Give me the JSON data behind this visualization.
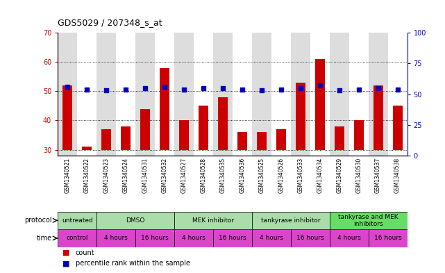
{
  "title": "GDS5029 / 207348_s_at",
  "samples": [
    "GSM1340521",
    "GSM1340522",
    "GSM1340523",
    "GSM1340524",
    "GSM1340531",
    "GSM1340532",
    "GSM1340527",
    "GSM1340528",
    "GSM1340535",
    "GSM1340536",
    "GSM1340525",
    "GSM1340526",
    "GSM1340533",
    "GSM1340534",
    "GSM1340529",
    "GSM1340530",
    "GSM1340537",
    "GSM1340538"
  ],
  "counts": [
    52,
    31,
    37,
    38,
    44,
    58,
    40,
    45,
    48,
    36,
    36,
    37,
    53,
    61,
    38,
    40,
    52,
    45
  ],
  "percentile": [
    56,
    54,
    53,
    54,
    55,
    56,
    54,
    55,
    55,
    54,
    53,
    54,
    55,
    57,
    53,
    54,
    55,
    54
  ],
  "ylim_left": [
    28,
    70
  ],
  "ylim_right": [
    0,
    100
  ],
  "yticks_left": [
    30,
    40,
    50,
    60,
    70
  ],
  "yticks_right": [
    0,
    25,
    50,
    75,
    100
  ],
  "bar_color": "#cc0000",
  "dot_color": "#0000bb",
  "protocol_labels": [
    "untreated",
    "DMSO",
    "MEK inhibitor",
    "tankyrase inhibitor",
    "tankyrase and MEK\ninhibitors"
  ],
  "protocol_col_spans": [
    2,
    4,
    4,
    4,
    4
  ],
  "protocol_colors": [
    "#aaddaa",
    "#aaddaa",
    "#aaddaa",
    "#aaddaa",
    "#66dd66"
  ],
  "time_labels": [
    "control",
    "4 hours",
    "16 hours",
    "4 hours",
    "16 hours",
    "4 hours",
    "16 hours",
    "4 hours",
    "16 hours"
  ],
  "time_col_spans": [
    2,
    2,
    2,
    2,
    2,
    2,
    2,
    2,
    2
  ],
  "time_color": "#dd44cc",
  "bg_colors": [
    "#dddddd",
    "#ffffff",
    "#dddddd",
    "#ffffff",
    "#dddddd",
    "#ffffff",
    "#dddddd",
    "#ffffff",
    "#dddddd",
    "#ffffff",
    "#dddddd",
    "#ffffff",
    "#dddddd",
    "#ffffff",
    "#dddddd",
    "#ffffff",
    "#dddddd",
    "#ffffff"
  ]
}
